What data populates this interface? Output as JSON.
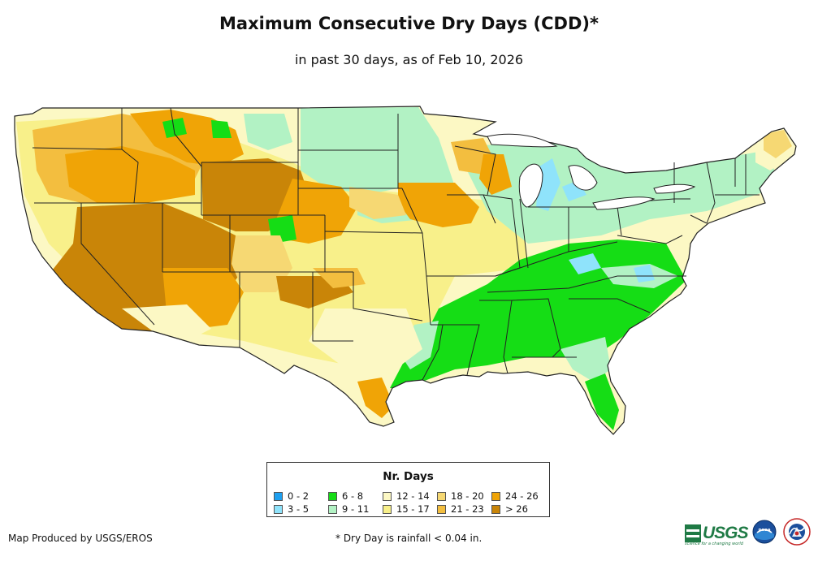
{
  "header": {
    "title": "Maximum Consecutive Dry Days (CDD)*",
    "subtitle": "in past 30 days, as of Feb 10, 2026"
  },
  "legend": {
    "title": "Nr. Days",
    "items": [
      {
        "label": "0 - 2",
        "color": "#1ea0f0"
      },
      {
        "label": "3 - 5",
        "color": "#8fe3fb"
      },
      {
        "label": "6 - 8",
        "color": "#15dd15"
      },
      {
        "label": "9 - 11",
        "color": "#b2f2c4"
      },
      {
        "label": "12 - 14",
        "color": "#fcf8c4"
      },
      {
        "label": "15 - 17",
        "color": "#f8f08a"
      },
      {
        "label": "18 - 20",
        "color": "#f6d873"
      },
      {
        "label": "21 - 23",
        "color": "#f3be3f"
      },
      {
        "label": "24 - 26",
        "color": "#f0a406"
      },
      {
        "label": "> 26",
        "color": "#c98508"
      }
    ]
  },
  "footer": {
    "producer": "Map Produced by USGS/EROS",
    "note": "* Dry Day is rainfall < 0.04 in."
  },
  "logos": {
    "usgs": "USGS",
    "usgs_tagline": "science for a changing world",
    "noaa": "noaa",
    "nws": "NATIONAL WEATHER SERVICE"
  },
  "map": {
    "region": "Contiguous United States",
    "colors": {
      "c0_2": "#1ea0f0",
      "c3_5": "#8fe3fb",
      "c6_8": "#15dd15",
      "c9_11": "#b2f2c4",
      "c12_14": "#fcf8c4",
      "c15_17": "#f8f08a",
      "c18_20": "#f6d873",
      "c21_23": "#f3be3f",
      "c24_26": "#f0a406",
      "c26p": "#c98508",
      "water": "#ffffff",
      "border": "#222222"
    }
  }
}
